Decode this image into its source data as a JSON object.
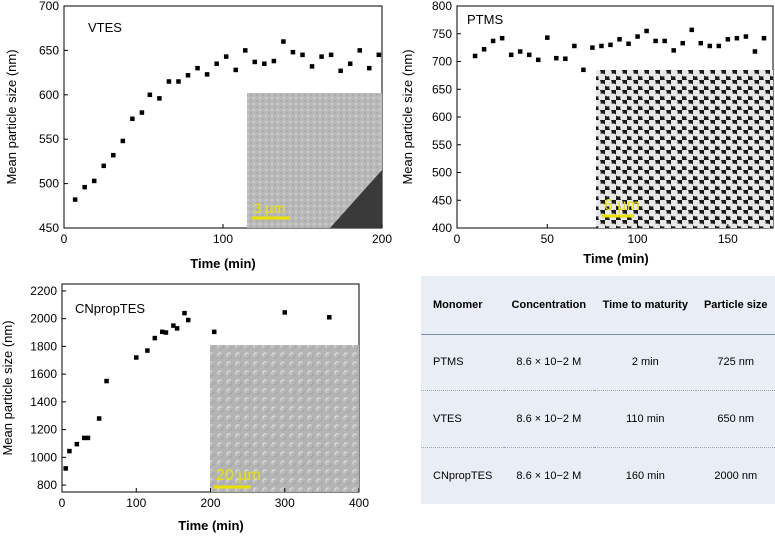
{
  "chart_data": [
    {
      "type": "scatter",
      "title": "VTES",
      "xlabel": "Time (min)",
      "ylabel": "Mean particle size (nm)",
      "xlim": [
        0,
        200
      ],
      "ylim": [
        450,
        700
      ],
      "xticks": [
        0,
        100,
        200
      ],
      "yticks": [
        450,
        500,
        550,
        600,
        650,
        700
      ],
      "inset_scale_label": "3 µm",
      "grid": false,
      "x": [
        7,
        13,
        19,
        25,
        31,
        37,
        43,
        49,
        54,
        60,
        66,
        72,
        78,
        84,
        90,
        96,
        102,
        108,
        114,
        120,
        126,
        132,
        138,
        144,
        150,
        156,
        162,
        168,
        174,
        180,
        186,
        192,
        198
      ],
      "y": [
        482,
        496,
        503,
        520,
        532,
        548,
        573,
        580,
        600,
        596,
        615,
        615,
        622,
        630,
        623,
        635,
        643,
        628,
        650,
        637,
        635,
        638,
        660,
        648,
        645,
        632,
        643,
        645,
        627,
        635,
        650,
        630,
        645
      ]
    },
    {
      "type": "scatter",
      "title": "PTMS",
      "xlabel": "Time (min)",
      "ylabel": "Mean particle size (nm)",
      "xlim": [
        0,
        175
      ],
      "ylim": [
        400,
        800
      ],
      "xticks": [
        0,
        50,
        100,
        150
      ],
      "yticks": [
        400,
        450,
        500,
        550,
        600,
        650,
        700,
        750,
        800
      ],
      "inset_scale_label": "6 µm",
      "grid": false,
      "x": [
        10,
        15,
        20,
        25,
        30,
        35,
        40,
        45,
        50,
        55,
        60,
        65,
        70,
        75,
        80,
        85,
        90,
        95,
        100,
        105,
        110,
        115,
        120,
        125,
        130,
        135,
        140,
        145,
        150,
        155,
        160,
        165,
        170
      ],
      "y": [
        710,
        722,
        737,
        742,
        712,
        718,
        712,
        703,
        743,
        706,
        705,
        728,
        685,
        725,
        728,
        730,
        740,
        732,
        745,
        755,
        737,
        737,
        720,
        733,
        757,
        733,
        728,
        728,
        740,
        742,
        745,
        718,
        742
      ]
    },
    {
      "type": "scatter",
      "title": "CNpropTES",
      "xlabel": "Time (min)",
      "ylabel": "Mean particle size (nm)",
      "xlim": [
        0,
        400
      ],
      "ylim": [
        750,
        2250
      ],
      "xticks": [
        0,
        100,
        200,
        300,
        400
      ],
      "yticks": [
        800,
        1000,
        1200,
        1400,
        1600,
        1800,
        2000,
        2200
      ],
      "inset_scale_label": "20 µm",
      "grid": false,
      "x": [
        5,
        10,
        20,
        30,
        35,
        50,
        60,
        100,
        115,
        125,
        135,
        140,
        150,
        155,
        165,
        170,
        205,
        300,
        360
      ],
      "y": [
        920,
        1045,
        1095,
        1140,
        1140,
        1280,
        1550,
        1720,
        1770,
        1860,
        1905,
        1900,
        1950,
        1930,
        2040,
        1990,
        1905,
        2045,
        2010
      ]
    },
    {
      "type": "table",
      "columns": [
        "Monomer",
        "Concentration",
        "Time to maturity",
        "Particle size"
      ],
      "rows": [
        [
          "PTMS",
          "8.6 × 10−2 M",
          "2 min",
          "725 nm"
        ],
        [
          "VTES",
          "8.6 × 10−2 M",
          "110 min",
          "650 nm"
        ],
        [
          "CNpropTES",
          "8.6 × 10−2 M",
          "160 min",
          "2000 nm"
        ]
      ]
    }
  ],
  "colors": {
    "marker": "#000000",
    "scale_bar": "#e9e200",
    "table_bg": "#e9eef6"
  }
}
